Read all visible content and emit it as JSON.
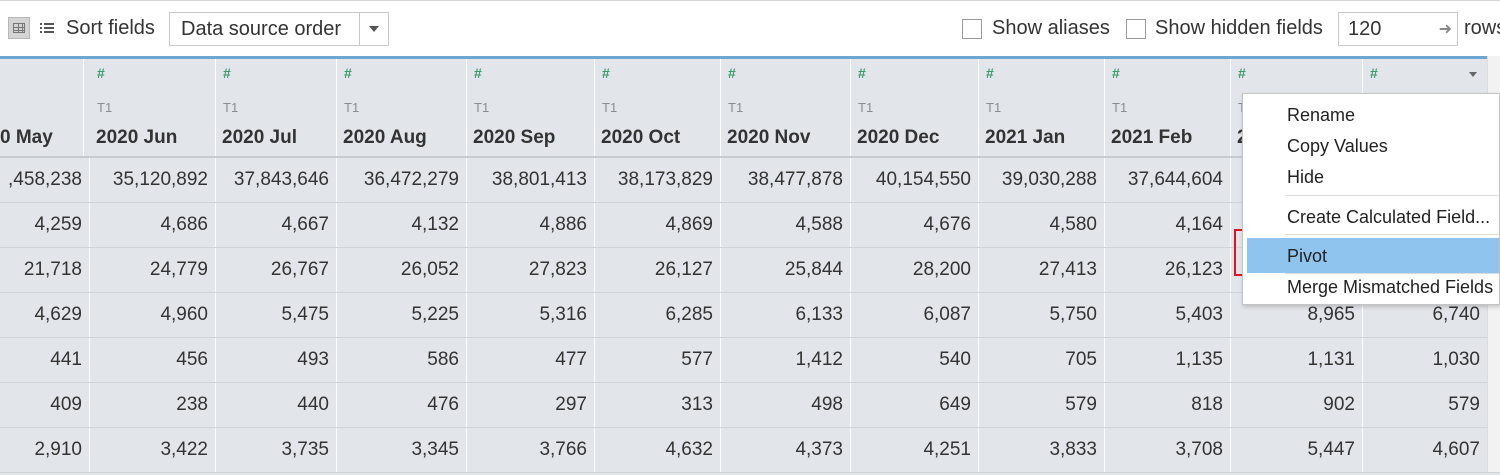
{
  "toolbar": {
    "sort_label": "Sort fields",
    "sort_value": "Data source order",
    "show_aliases": "Show aliases",
    "show_hidden": "Show hidden fields",
    "rows_value": "120",
    "rows_label": "rows"
  },
  "columns": [
    {
      "type": "",
      "source": "",
      "name": "0 May"
    },
    {
      "type": "#",
      "source": "T1",
      "name": "2020 Jun"
    },
    {
      "type": "#",
      "source": "T1",
      "name": "2020 Jul"
    },
    {
      "type": "#",
      "source": "T1",
      "name": "2020 Aug"
    },
    {
      "type": "#",
      "source": "T1",
      "name": "2020 Sep"
    },
    {
      "type": "#",
      "source": "T1",
      "name": "2020 Oct"
    },
    {
      "type": "#",
      "source": "T1",
      "name": "2020 Nov"
    },
    {
      "type": "#",
      "source": "T1",
      "name": "2020 Dec"
    },
    {
      "type": "#",
      "source": "T1",
      "name": "2021 Jan"
    },
    {
      "type": "#",
      "source": "T1",
      "name": "2021 Feb"
    },
    {
      "type": "#",
      "source": "T",
      "name": "2"
    },
    {
      "type": "#",
      "source": "",
      "name": ""
    }
  ],
  "rows": [
    [
      ",458,238",
      "35,120,892",
      "37,843,646",
      "36,472,279",
      "38,801,413",
      "38,173,829",
      "38,477,878",
      "40,154,550",
      "39,030,288",
      "37,644,604",
      "",
      ""
    ],
    [
      "4,259",
      "4,686",
      "4,667",
      "4,132",
      "4,886",
      "4,869",
      "4,588",
      "4,676",
      "4,580",
      "4,164",
      "",
      ""
    ],
    [
      "21,718",
      "24,779",
      "26,767",
      "26,052",
      "27,823",
      "26,127",
      "25,844",
      "28,200",
      "27,413",
      "26,123",
      "",
      ""
    ],
    [
      "4,629",
      "4,960",
      "5,475",
      "5,225",
      "5,316",
      "6,285",
      "6,133",
      "6,087",
      "5,750",
      "5,403",
      "8,965",
      "6,740"
    ],
    [
      "441",
      "456",
      "493",
      "586",
      "477",
      "577",
      "1,412",
      "540",
      "705",
      "1,135",
      "1,131",
      "1,030"
    ],
    [
      "409",
      "238",
      "440",
      "476",
      "297",
      "313",
      "498",
      "649",
      "579",
      "818",
      "902",
      "579"
    ],
    [
      "2,910",
      "3,422",
      "3,735",
      "3,345",
      "3,766",
      "4,632",
      "4,373",
      "4,251",
      "3,833",
      "3,708",
      "5,447",
      "4,607"
    ]
  ],
  "context_menu": {
    "rename": "Rename",
    "copy_values": "Copy Values",
    "hide": "Hide",
    "create_calculated_field": "Create Calculated Field...",
    "pivot": "Pivot",
    "merge_mismatched_fields": "Merge Mismatched Fields"
  },
  "colors": {
    "highlight": "#8fc4ee",
    "annotation_box": "#e0141e",
    "header_accent": "#6da5d3",
    "number_type_icon": "#3a9b6b"
  }
}
